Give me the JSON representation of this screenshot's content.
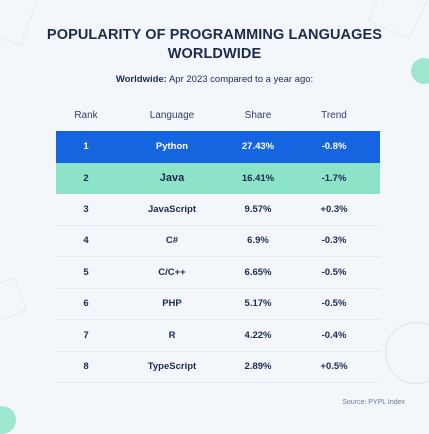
{
  "title": "POPULARITY OF PROGRAMMING LANGUAGES\nWORLDWIDE",
  "subtitle_label": "Worldwide:",
  "subtitle_text": " Apr 2023 compared to a year ago:",
  "source": "Source: PYPL Index",
  "colors": {
    "highlight_first": "#1565e0",
    "highlight_second": "#8de3c8",
    "text": "#1c2a4d",
    "background": "#f3f7fb"
  },
  "chart_data": {
    "type": "table",
    "columns": [
      "Rank",
      "Language",
      "Share",
      "Trend"
    ],
    "rows": [
      [
        "1",
        "Python",
        "27.43%",
        "-0.8%"
      ],
      [
        "2",
        "Java",
        "16.41%",
        "-1.7%"
      ],
      [
        "3",
        "JavaScript",
        "9.57%",
        "+0.3%"
      ],
      [
        "4",
        "C#",
        "6.9%",
        "-0.3%"
      ],
      [
        "5",
        "C/C++",
        "6.65%",
        "-0.5%"
      ],
      [
        "6",
        "PHP",
        "5.17%",
        "-0.5%"
      ],
      [
        "7",
        "R",
        "4.22%",
        "-0.4%"
      ],
      [
        "8",
        "TypeScript",
        "2.89%",
        "+0.5%"
      ]
    ]
  }
}
